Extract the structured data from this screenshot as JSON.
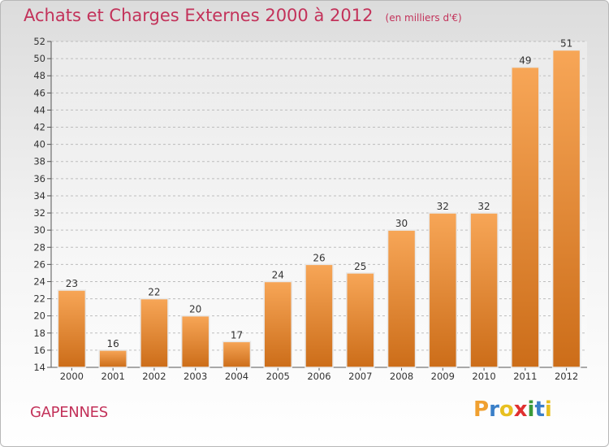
{
  "header": {
    "title": "Achats et Charges Externes 2000 à 2012",
    "unit_note": "(en milliers d'€)"
  },
  "commune": "GAPENNES",
  "logo": {
    "text": "Proxiti",
    "letters": [
      "P",
      "r",
      "o",
      "x",
      "i",
      "t",
      "i"
    ],
    "letter_colors": [
      "#f0a030",
      "#3a7fc8",
      "#e8c020",
      "#e03030",
      "#3a9a3a",
      "#3a7fc8",
      "#e8c020"
    ]
  },
  "colors": {
    "accent": "#c3325a",
    "bar_light": "#f7a657",
    "bar_dark": "#cc6d19",
    "grid": "#bdbdbd"
  },
  "chart_data": {
    "type": "bar",
    "categories": [
      "2000",
      "2001",
      "2002",
      "2003",
      "2004",
      "2005",
      "2006",
      "2007",
      "2008",
      "2009",
      "2010",
      "2011",
      "2012"
    ],
    "values": [
      23,
      16,
      22,
      20,
      17,
      24,
      26,
      25,
      30,
      32,
      32,
      49,
      51
    ],
    "ylim": [
      14,
      52
    ],
    "yticks": [
      14,
      16,
      18,
      20,
      22,
      24,
      26,
      28,
      30,
      32,
      34,
      36,
      38,
      40,
      42,
      44,
      46,
      48,
      50,
      52
    ],
    "grid": "horizontal dashed",
    "title": "Achats et Charges Externes 2000 à 2012",
    "xlabel": "",
    "ylabel": ""
  }
}
